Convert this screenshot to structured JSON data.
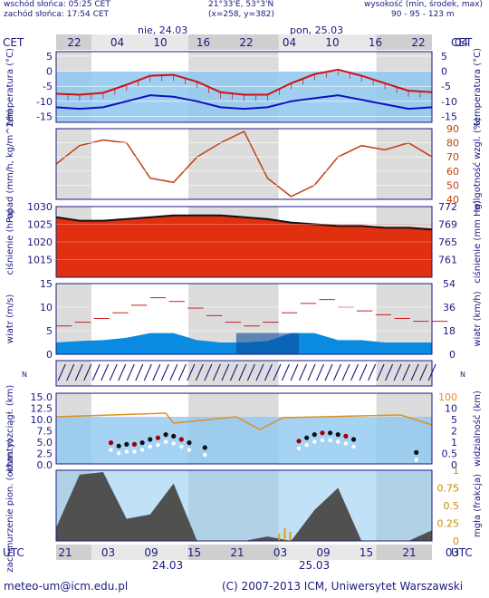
{
  "header": {
    "sunrise": "wschód słońca: 05:25 CET",
    "sunset": "zachód słońca: 17:54 CET",
    "coords": "21°33'E, 53°3'N",
    "grid": "(x=258, y=382)",
    "height_label": "wysokość (min, środek, max)",
    "height_values": "90 - 95 - 123 m",
    "day1": "nie, 24.03",
    "day2": "pon, 25.03",
    "tz_left": "CET",
    "tz_right": "CET",
    "top_hours": [
      "22",
      "04",
      "10",
      "16",
      "22",
      "04",
      "10",
      "16",
      "22",
      "04"
    ]
  },
  "bottom": {
    "tz_left": "UTC",
    "tz_right": "UTC",
    "hours": [
      "21",
      "03",
      "09",
      "15",
      "21",
      "03",
      "09",
      "15",
      "21",
      "03"
    ],
    "date1": "24.03",
    "date2": "25.03"
  },
  "panels": {
    "temp": {
      "ylabel": "temperatura (°C)",
      "ylabel_right": "temperatura (°C)",
      "ticks": [
        "5",
        "0",
        "-5",
        "-10",
        "-15"
      ]
    },
    "precip": {
      "ylabel": "opad (mm/h, kg/m^2/h)",
      "ylabel_right": "wilgotność wzgl. (%)",
      "ticks_right": [
        "90",
        "80",
        "70",
        "60",
        "50",
        "40"
      ]
    },
    "pressure": {
      "ylabel": "ciśnienie (hPa)",
      "ylabel_right": "ciśnienie (mm Hg)",
      "ticks": [
        "1030",
        "1025",
        "1020",
        "1015"
      ],
      "ticks_right": [
        "772",
        "769",
        "765",
        "761"
      ]
    },
    "wind": {
      "ylabel": "wiatr (m/s)",
      "ylabel_right": "wiatr (km/h)",
      "ticks": [
        "15",
        "10",
        "5",
        "0"
      ],
      "ticks_right": [
        "54",
        "36",
        "18",
        "0"
      ]
    },
    "winddir": {
      "compass": "N W E S"
    },
    "cloudbase": {
      "ylabel": "chm. rozciągł. (km)",
      "ylabel_right": "widzialność (km)",
      "ticks": [
        "15.0",
        "12.5",
        "10.0",
        "7.5",
        "5.0",
        "2.5",
        "0.0"
      ],
      "ticks_right": [
        "100",
        "10",
        "5",
        "2",
        "1",
        "0.5",
        "0"
      ]
    },
    "cloud": {
      "ylabel": "zachmurzenie pion. (oktanty)",
      "ylabel_right": "mgła (frakcja)",
      "ticks_right": [
        "1",
        "0.75",
        "0.5",
        "0.25",
        "0"
      ]
    }
  },
  "footer": {
    "email": "meteo-um@icm.edu.pl",
    "copyright": "(C) 2007-2013 ICM, Uniwersytet Warszawski"
  },
  "colors": {
    "temp": "#d01010",
    "dew": "#1010c0",
    "humidity": "#c04010",
    "pressure_fill": "#e03010",
    "wind_fill": "#0a8ae0",
    "cloud_fill": "#505050",
    "frame": "#1a1a80"
  },
  "chart_data": {
    "type": "line",
    "x_hours_utc": [
      0,
      3,
      6,
      9,
      12,
      15,
      18,
      21,
      24,
      27,
      30,
      33,
      36,
      39,
      42,
      45,
      48
    ],
    "series": [
      {
        "name": "temperatura",
        "values": [
          -7.5,
          -7.8,
          -7.2,
          -4.5,
          -1.5,
          -1.2,
          -3.5,
          -7,
          -7.8,
          -7.8,
          -4,
          -1,
          0.5,
          -1.5,
          -4,
          -6.5,
          -7
        ]
      },
      {
        "name": "temperatura punktu rosy",
        "values": [
          -12,
          -12.5,
          -12,
          -10,
          -8,
          -8.5,
          -10,
          -12,
          -12.5,
          -12,
          -10,
          -9,
          -8,
          -9.5,
          -11,
          -12.5,
          -12
        ]
      },
      {
        "name": "wilgotność wzgl.",
        "values": [
          65,
          78,
          82,
          80,
          55,
          52,
          70,
          80,
          88,
          55,
          42,
          50,
          70,
          78,
          75,
          80,
          70
        ]
      },
      {
        "name": "ciśnienie",
        "values": [
          1027,
          1026,
          1026,
          1026.5,
          1027,
          1027.5,
          1027.5,
          1027.5,
          1027,
          1026.5,
          1025.5,
          1025,
          1024.5,
          1024.5,
          1024,
          1024,
          1023.5
        ]
      },
      {
        "name": "wiatr",
        "values": [
          2.5,
          2.8,
          3,
          3.5,
          4.5,
          4.5,
          3,
          2.5,
          2.5,
          2.8,
          4.5,
          4.5,
          3,
          3,
          2.5,
          2.5,
          2.5
        ]
      },
      {
        "name": "porywy",
        "values": [
          6,
          7,
          8,
          10,
          12,
          11,
          9,
          7,
          6,
          7,
          10,
          12,
          10,
          9,
          8,
          7,
          7
        ]
      },
      {
        "name": "zachmurzenie",
        "values": [
          1.5,
          7.5,
          7.8,
          2.5,
          3,
          6.5,
          0,
          0,
          0,
          0.5,
          0,
          3.5,
          6,
          0,
          0,
          0,
          1.2
        ]
      }
    ],
    "temp_ylim": [
      -17,
      6.5
    ],
    "humidity_ylim": [
      40,
      90
    ],
    "pressure_ylim": [
      1010,
      1030
    ],
    "wind_ylim": [
      0,
      15
    ],
    "cloud_ylim": [
      0,
      8
    ]
  }
}
